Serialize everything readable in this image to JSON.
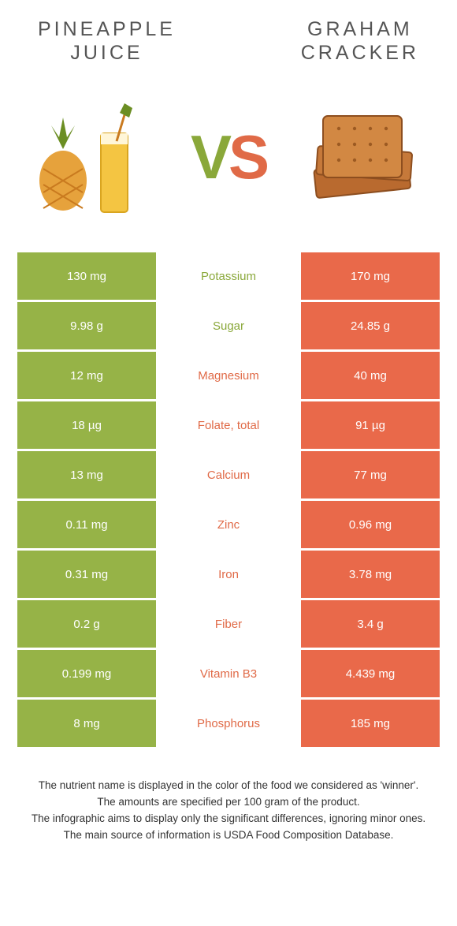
{
  "colors": {
    "left_bg": "#96b347",
    "right_bg": "#e9694a",
    "mid_left_text": "#8aa83a",
    "mid_right_text": "#e06a47",
    "title_text": "#555555",
    "footer_text": "#333333",
    "page_bg": "#ffffff"
  },
  "left": {
    "title": "PINEAPPLE\nJUICE"
  },
  "right": {
    "title": "GRAHAM\nCRACKER"
  },
  "rows": [
    {
      "left": "130 mg",
      "label": "Potassium",
      "right": "170 mg",
      "winner": "left"
    },
    {
      "left": "9.98 g",
      "label": "Sugar",
      "right": "24.85 g",
      "winner": "left"
    },
    {
      "left": "12 mg",
      "label": "Magnesium",
      "right": "40 mg",
      "winner": "right"
    },
    {
      "left": "18 µg",
      "label": "Folate, total",
      "right": "91 µg",
      "winner": "right"
    },
    {
      "left": "13 mg",
      "label": "Calcium",
      "right": "77 mg",
      "winner": "right"
    },
    {
      "left": "0.11 mg",
      "label": "Zinc",
      "right": "0.96 mg",
      "winner": "right"
    },
    {
      "left": "0.31 mg",
      "label": "Iron",
      "right": "3.78 mg",
      "winner": "right"
    },
    {
      "left": "0.2 g",
      "label": "Fiber",
      "right": "3.4 g",
      "winner": "right"
    },
    {
      "left": "0.199 mg",
      "label": "Vitamin B3",
      "right": "4.439 mg",
      "winner": "right"
    },
    {
      "left": "8 mg",
      "label": "Phosphorus",
      "right": "185 mg",
      "winner": "right"
    }
  ],
  "footer_lines": [
    "The nutrient name is displayed in the color of the food we considered as 'winner'.",
    "The amounts are specified per 100 gram of the product.",
    "The infographic aims to display only the significant differences, ignoring minor ones.",
    "The main source of information is USDA Food Composition Database."
  ]
}
